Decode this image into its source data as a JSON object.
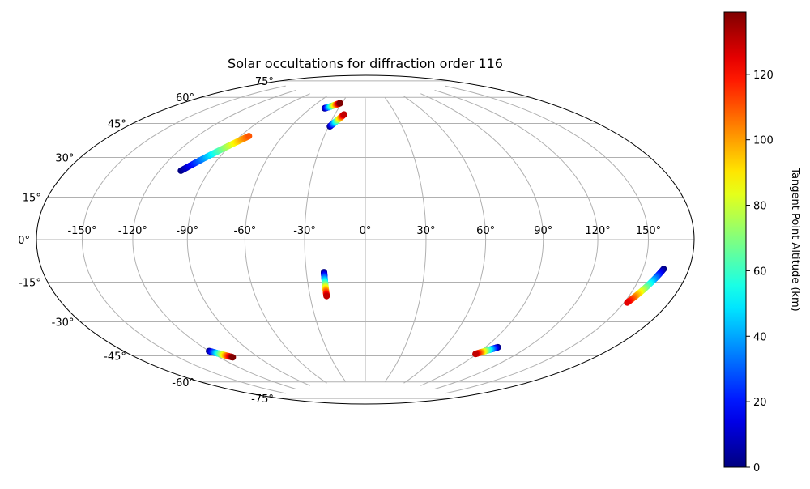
{
  "chart_data": {
    "type": "scatter",
    "projection": "hammer",
    "title": "Solar occultations for diffraction order 116",
    "grid": true,
    "longitude_ticks": [
      -150,
      -120,
      -90,
      -60,
      -30,
      0,
      30,
      60,
      90,
      120,
      150
    ],
    "longitude_tick_labels": [
      "-150°",
      "-120°",
      "-90°",
      "-60°",
      "-30°",
      "0°",
      "30°",
      "60°",
      "90°",
      "120°",
      "150°"
    ],
    "latitude_ticks": [
      75,
      60,
      45,
      30,
      15,
      0,
      -15,
      -30,
      -45,
      -60,
      -75
    ],
    "latitude_tick_labels": [
      "75°",
      "60°",
      "45°",
      "30°",
      "15°",
      "0°",
      "-15°",
      "-30°",
      "-45°",
      "-60°",
      "-75°"
    ],
    "colorbar": {
      "label": "Tangent Point Altitude (km)",
      "range": [
        0,
        139
      ],
      "ticks": [
        0,
        20,
        40,
        60,
        80,
        100,
        120
      ],
      "tick_labels": [
        "0",
        "20",
        "40",
        "60",
        "80",
        "100",
        "120"
      ],
      "colormap": "jet"
    },
    "tracks": [
      {
        "start_lon": -107.0,
        "start_lat": 31.0,
        "end_lon": -84.0,
        "end_lat": 50.0,
        "alt_start": 0,
        "alt_end": 110
      },
      {
        "start_lon": -45.0,
        "start_lat": 68.0,
        "end_lon": -32.0,
        "end_lat": 71.5,
        "alt_start": 0,
        "alt_end": 139
      },
      {
        "start_lon": -29.0,
        "start_lat": 58.0,
        "end_lon": -21.0,
        "end_lat": 65.0,
        "alt_start": 0,
        "alt_end": 130
      },
      {
        "start_lon": -21.0,
        "start_lat": -16.0,
        "end_lon": -21.0,
        "end_lat": -28.0,
        "alt_start": 0,
        "alt_end": 130
      },
      {
        "start_lon": -120.0,
        "start_lat": -51.0,
        "end_lon": -110.0,
        "end_lat": -55.5,
        "alt_start": 0,
        "alt_end": 139
      },
      {
        "start_lon": 99.0,
        "start_lat": -51.0,
        "end_lon": 89.0,
        "end_lat": -55.5,
        "alt_start": 0,
        "alt_end": 130
      },
      {
        "start_lon": 163.0,
        "start_lat": -11.0,
        "end_lon": 152.0,
        "end_lat": -25.0,
        "alt_start": 0,
        "alt_end": 125
      }
    ]
  }
}
